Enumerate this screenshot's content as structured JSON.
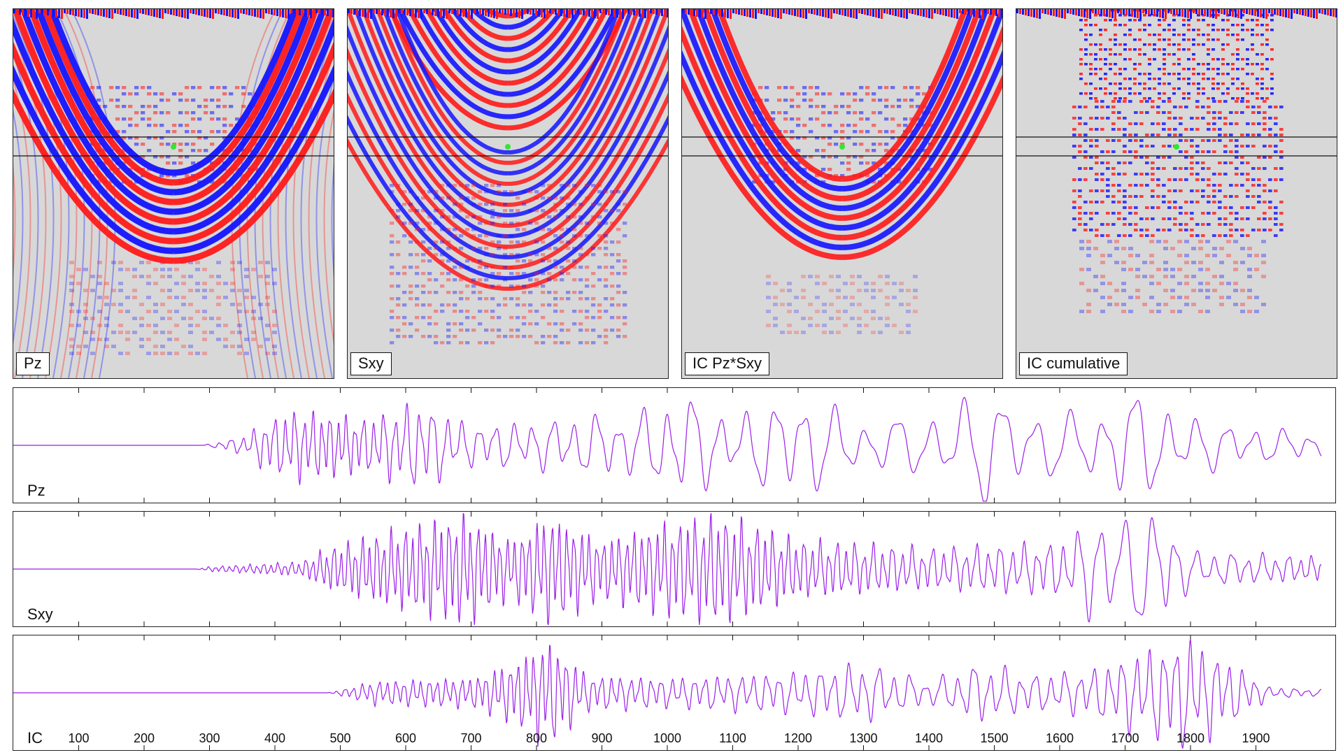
{
  "panels": [
    {
      "id": "pz",
      "label": "Pz",
      "pattern": "pz"
    },
    {
      "id": "sxy",
      "label": "Sxy",
      "pattern": "sxy"
    },
    {
      "id": "icp",
      "label": "IC Pz*Sxy",
      "pattern": "ic"
    },
    {
      "id": "icc",
      "label": "IC cumulative",
      "pattern": "cum"
    }
  ],
  "colors": {
    "positive": "#ff1a1a",
    "negative": "#1414ff",
    "background": "#d8d8d8",
    "trace": "#9b1fe8",
    "marker": "#33e633",
    "lines": "#111111"
  },
  "chart_data": {
    "type": "line",
    "x_range": [
      0,
      2000
    ],
    "x_ticks": [
      100,
      200,
      300,
      400,
      500,
      600,
      700,
      800,
      900,
      1000,
      1100,
      1200,
      1300,
      1400,
      1500,
      1600,
      1700,
      1800,
      1900
    ],
    "series": [
      {
        "name": "Pz",
        "envelope": [
          [
            0,
            0
          ],
          [
            290,
            0
          ],
          [
            330,
            0.1
          ],
          [
            360,
            0.18
          ],
          [
            380,
            0.4
          ],
          [
            430,
            0.6
          ],
          [
            480,
            0.55
          ],
          [
            540,
            0.45
          ],
          [
            620,
            0.75
          ],
          [
            700,
            0.35
          ],
          [
            800,
            0.4
          ],
          [
            880,
            0.5
          ],
          [
            960,
            0.55
          ],
          [
            1020,
            0.9
          ],
          [
            1100,
            0.5
          ],
          [
            1200,
            0.9
          ],
          [
            1300,
            0.4
          ],
          [
            1400,
            0.5
          ],
          [
            1480,
            0.95
          ],
          [
            1560,
            0.6
          ],
          [
            1640,
            0.5
          ],
          [
            1700,
            0.95
          ],
          [
            1800,
            0.5
          ],
          [
            1860,
            0.35
          ],
          [
            2000,
            0.2
          ]
        ],
        "period": [
          [
            0,
            30
          ],
          [
            500,
            12
          ],
          [
            700,
            25
          ],
          [
            900,
            35
          ],
          [
            1200,
            45
          ],
          [
            1500,
            55
          ],
          [
            2000,
            40
          ]
        ]
      },
      {
        "name": "Sxy",
        "envelope": [
          [
            0,
            0
          ],
          [
            280,
            0
          ],
          [
            300,
            0.04
          ],
          [
            440,
            0.12
          ],
          [
            480,
            0.35
          ],
          [
            560,
            0.6
          ],
          [
            690,
            0.95
          ],
          [
            760,
            0.5
          ],
          [
            820,
            0.95
          ],
          [
            900,
            0.5
          ],
          [
            1000,
            0.8
          ],
          [
            1080,
            0.95
          ],
          [
            1200,
            0.5
          ],
          [
            1400,
            0.35
          ],
          [
            1600,
            0.45
          ],
          [
            1660,
            0.9
          ],
          [
            1760,
            0.95
          ],
          [
            1800,
            0.3
          ],
          [
            2000,
            0.2
          ]
        ],
        "period": [
          [
            0,
            10
          ],
          [
            1200,
            12
          ],
          [
            1600,
            20
          ],
          [
            1700,
            45
          ],
          [
            1800,
            30
          ],
          [
            2000,
            15
          ]
        ]
      },
      {
        "name": "IC",
        "envelope": [
          [
            0,
            0
          ],
          [
            480,
            0
          ],
          [
            500,
            0.05
          ],
          [
            550,
            0.2
          ],
          [
            700,
            0.25
          ],
          [
            760,
            0.5
          ],
          [
            820,
            0.9
          ],
          [
            880,
            0.3
          ],
          [
            1000,
            0.25
          ],
          [
            1100,
            0.3
          ],
          [
            1200,
            0.35
          ],
          [
            1300,
            0.5
          ],
          [
            1400,
            0.2
          ],
          [
            1480,
            0.5
          ],
          [
            1560,
            0.3
          ],
          [
            1650,
            0.4
          ],
          [
            1720,
            0.7
          ],
          [
            1800,
            0.95
          ],
          [
            1880,
            0.4
          ],
          [
            1920,
            0.1
          ],
          [
            2000,
            0.05
          ]
        ],
        "period": [
          [
            0,
            15
          ],
          [
            800,
            12
          ],
          [
            1400,
            25
          ],
          [
            1800,
            20
          ],
          [
            2000,
            20
          ]
        ]
      }
    ]
  }
}
